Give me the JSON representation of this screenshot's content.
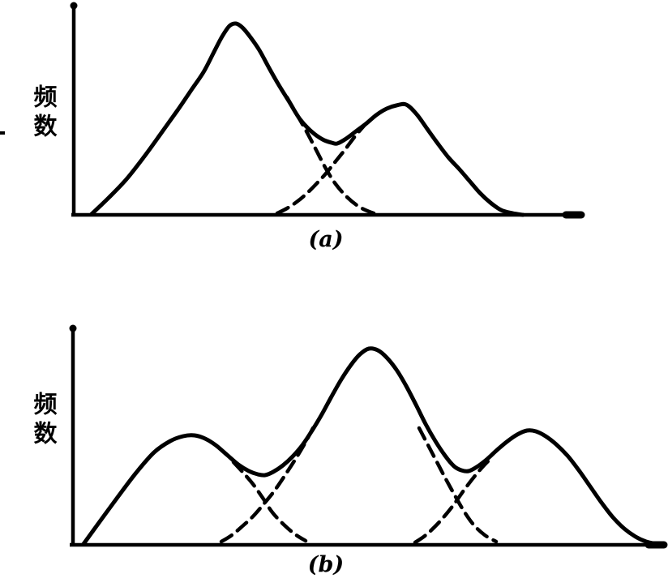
{
  "style": {
    "background": "#ffffff",
    "ink": "#000000",
    "solid_width": 5,
    "dashed_width": 4.5,
    "dash_pattern": "15 9",
    "axis_width": 4.5
  },
  "chart_data": [
    {
      "id": "a",
      "type": "line",
      "caption": "(a)",
      "ylabel": "频数",
      "xlabel": "",
      "grid": false,
      "legend": null,
      "units": "figure pixel coordinates (no numeric scale printed on axes)",
      "axes": {
        "y_axis": {
          "x": 91,
          "y_top": 4,
          "y_bottom": 267
        },
        "x_axis": {
          "y": 265,
          "x_left": 88,
          "x_right": 720,
          "end_cap": true
        }
      },
      "series": [
        {
          "name": "observed-envelope",
          "style": "solid",
          "points": [
            [
              113,
              264
            ],
            [
              134,
              244
            ],
            [
              156,
              221
            ],
            [
              178,
              193
            ],
            [
              199,
              164
            ],
            [
              219,
              136
            ],
            [
              236,
              111
            ],
            [
              251,
              89
            ],
            [
              264,
              64
            ],
            [
              274,
              45
            ],
            [
              283,
              32
            ],
            [
              291,
              29
            ],
            [
              299,
              34
            ],
            [
              309,
              46
            ],
            [
              320,
              62
            ],
            [
              332,
              84
            ],
            [
              344,
              105
            ],
            [
              357,
              126
            ],
            [
              370,
              147
            ],
            [
              384,
              162
            ],
            [
              398,
              172
            ],
            [
              409,
              176
            ],
            [
              416,
              177
            ],
            [
              427,
              171
            ],
            [
              439,
              162
            ],
            [
              451,
              153
            ],
            [
              464,
              142
            ],
            [
              477,
              134
            ],
            [
              489,
              130
            ],
            [
              501,
              129
            ],
            [
              514,
              141
            ],
            [
              527,
              159
            ],
            [
              540,
              177
            ],
            [
              553,
              194
            ],
            [
              566,
              208
            ],
            [
              579,
              223
            ],
            [
              592,
              238
            ],
            [
              605,
              250
            ],
            [
              618,
              259
            ],
            [
              632,
              263
            ],
            [
              645,
              265
            ]
          ]
        },
        {
          "name": "component-1-right-tail",
          "style": "dashed",
          "points": [
            [
              354,
              120
            ],
            [
              366,
              141
            ],
            [
              378,
              162
            ],
            [
              390,
              185
            ],
            [
              402,
              208
            ],
            [
              414,
              227
            ],
            [
              428,
              243
            ],
            [
              443,
              255
            ],
            [
              458,
              262
            ],
            [
              466,
              264
            ]
          ]
        },
        {
          "name": "component-2-left-flank",
          "style": "dashed",
          "points": [
            [
              342,
              263
            ],
            [
              354,
              257
            ],
            [
              366,
              249
            ],
            [
              378,
              239
            ],
            [
              390,
              227
            ],
            [
              402,
              214
            ],
            [
              414,
              199
            ],
            [
              426,
              184
            ],
            [
              438,
              168
            ],
            [
              450,
              154
            ]
          ]
        }
      ]
    },
    {
      "id": "b",
      "type": "line",
      "caption": "(b)",
      "ylabel": "频数",
      "xlabel": "",
      "grid": false,
      "legend": null,
      "units": "figure pixel coordinates (no numeric scale printed on axes)",
      "axes": {
        "y_axis": {
          "x": 90,
          "y_top": 402,
          "y_bottom": 674
        },
        "x_axis": {
          "y": 672,
          "x_left": 86,
          "x_right": 822,
          "end_cap": true
        }
      },
      "series": [
        {
          "name": "observed-envelope",
          "style": "solid",
          "points": [
            [
              103,
              671
            ],
            [
              124,
              642
            ],
            [
              146,
              612
            ],
            [
              168,
              583
            ],
            [
              190,
              558
            ],
            [
              210,
              544
            ],
            [
              226,
              538
            ],
            [
              240,
              537
            ],
            [
              253,
              541
            ],
            [
              266,
              549
            ],
            [
              280,
              561
            ],
            [
              294,
              573
            ],
            [
              307,
              581
            ],
            [
              318,
              585
            ],
            [
              327,
              586
            ],
            [
              337,
              582
            ],
            [
              349,
              574
            ],
            [
              361,
              563
            ],
            [
              373,
              549
            ],
            [
              385,
              531
            ],
            [
              397,
              511
            ],
            [
              409,
              489
            ],
            [
              421,
              468
            ],
            [
              433,
              450
            ],
            [
              444,
              437
            ],
            [
              455,
              430
            ],
            [
              466,
              432
            ],
            [
              477,
              441
            ],
            [
              489,
              456
            ],
            [
              501,
              476
            ],
            [
              513,
              499
            ],
            [
              525,
              523
            ],
            [
              537,
              544
            ],
            [
              549,
              562
            ],
            [
              560,
              575
            ],
            [
              569,
              580
            ],
            [
              578,
              581
            ],
            [
              588,
              576
            ],
            [
              600,
              567
            ],
            [
              612,
              556
            ],
            [
              625,
              545
            ],
            [
              638,
              536
            ],
            [
              650,
              531
            ],
            [
              661,
              532
            ],
            [
              673,
              538
            ],
            [
              686,
              548
            ],
            [
              700,
              562
            ],
            [
              714,
              580
            ],
            [
              728,
              600
            ],
            [
              742,
              620
            ],
            [
              756,
              638
            ],
            [
              770,
              652
            ],
            [
              784,
              662
            ],
            [
              797,
              668
            ],
            [
              810,
              671
            ]
          ]
        },
        {
          "name": "component-1-right-tail",
          "style": "dashed",
          "points": [
            [
              288,
              570
            ],
            [
              300,
              583
            ],
            [
              312,
              597
            ],
            [
              324,
              614
            ],
            [
              336,
              632
            ],
            [
              350,
              647
            ],
            [
              364,
              659
            ],
            [
              377,
              667
            ]
          ]
        },
        {
          "name": "component-2-left-flank",
          "style": "dashed",
          "points": [
            [
              273,
              668
            ],
            [
              286,
              660
            ],
            [
              299,
              649
            ],
            [
              312,
              637
            ],
            [
              325,
              622
            ],
            [
              338,
              606
            ],
            [
              351,
              587
            ],
            [
              364,
              567
            ],
            [
              376,
              547
            ],
            [
              386,
              528
            ]
          ]
        },
        {
          "name": "component-2-right-tail",
          "style": "dashed",
          "points": [
            [
              517,
              528
            ],
            [
              528,
              549
            ],
            [
              539,
              570
            ],
            [
              550,
              591
            ],
            [
              561,
              611
            ],
            [
              572,
              630
            ],
            [
              584,
              647
            ],
            [
              598,
              660
            ],
            [
              612,
              668
            ]
          ]
        },
        {
          "name": "component-3-left-flank",
          "style": "dashed",
          "points": [
            [
              512,
              669
            ],
            [
              524,
              661
            ],
            [
              536,
              650
            ],
            [
              548,
              637
            ],
            [
              560,
              622
            ],
            [
              572,
              605
            ],
            [
              585,
              588
            ],
            [
              597,
              574
            ],
            [
              604,
              567
            ]
          ]
        }
      ]
    }
  ]
}
